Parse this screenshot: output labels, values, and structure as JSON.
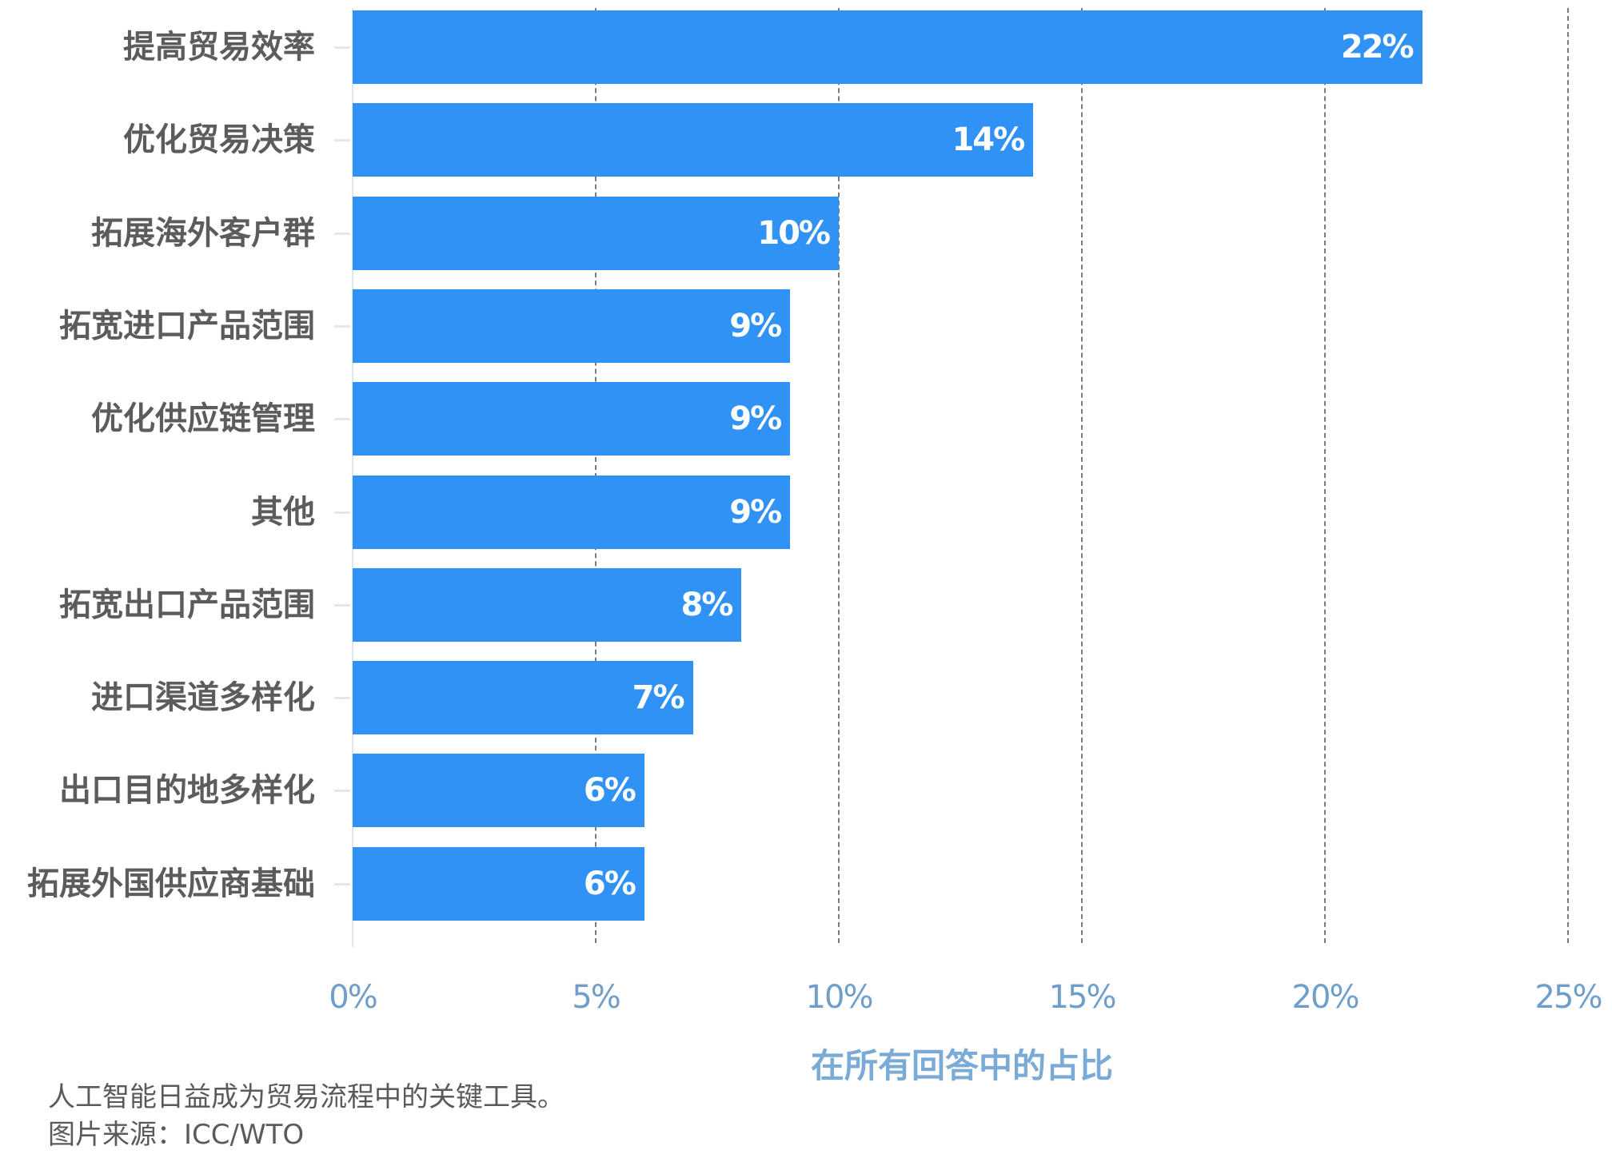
{
  "chart_data": {
    "type": "bar",
    "orientation": "horizontal",
    "title": "",
    "categories": [
      "提高贸易效率",
      "优化贸易决策",
      "拓展海外客户群",
      "拓宽进口产品范围",
      "优化供应链管理",
      "其他",
      "拓宽出口产品范围",
      "进口渠道多样化",
      "出口目的地多样化",
      "拓展外国供应商基础"
    ],
    "values": [
      22,
      14,
      10,
      9,
      9,
      9,
      8,
      7,
      6,
      6
    ],
    "value_labels": [
      "22%",
      "14%",
      "10%",
      "9%",
      "9%",
      "9%",
      "8%",
      "7%",
      "6%",
      "6%"
    ],
    "xlabel": "在所有回答中的占比",
    "ylabel": "",
    "xlim": [
      0,
      25
    ],
    "x_ticks": [
      "0%",
      "5%",
      "10%",
      "15%",
      "20%",
      "25%"
    ],
    "grid": "vertical dashed",
    "legend": null,
    "bar_color": "#3192f6"
  },
  "caption": {
    "line1": "人工智能日益成为贸易流程中的关键工具。",
    "line2": "图片来源：ICC/WTO"
  }
}
